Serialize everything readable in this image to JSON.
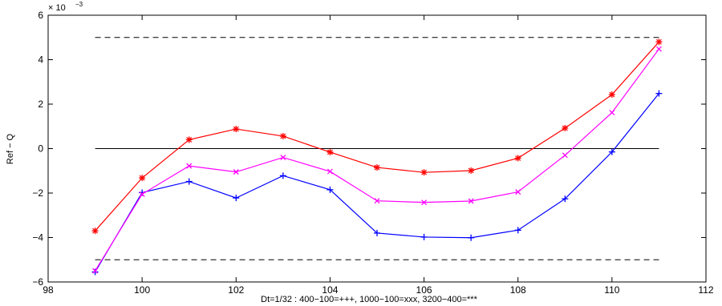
{
  "chart_data": {
    "type": "line",
    "title": "",
    "xlabel": "Dt=1/32 : 400−100=+++, 1000−100=xxx, 3200−400=***",
    "ylabel": "Ref − Q",
    "exponent_label": "× 10",
    "exponent_power": "−3",
    "xlim": [
      98,
      112
    ],
    "ylim": [
      -6,
      6
    ],
    "grid": false,
    "xticks": [
      98,
      100,
      102,
      104,
      106,
      108,
      110,
      112
    ],
    "yticks": [
      -6,
      -4,
      -2,
      0,
      2,
      4,
      6
    ],
    "x": [
      99,
      100,
      101,
      102,
      103,
      104,
      105,
      106,
      107,
      108,
      109,
      110,
      111
    ],
    "series": [
      {
        "marker": "+",
        "color": "#0000ff",
        "values": [
          -5.55,
          -1.98,
          -1.48,
          -2.22,
          -1.22,
          -1.85,
          -3.8,
          -3.98,
          -4.01,
          -3.67,
          -2.26,
          -0.15,
          2.48
        ]
      },
      {
        "marker": "x",
        "color": "#ff00ff",
        "values": [
          -5.5,
          -2.05,
          -0.78,
          -1.05,
          -0.4,
          -1.03,
          -2.35,
          -2.42,
          -2.36,
          -1.95,
          -0.3,
          1.62,
          4.48
        ]
      },
      {
        "marker": "*",
        "color": "#ff0000",
        "values": [
          -3.7,
          -1.32,
          0.4,
          0.88,
          0.56,
          -0.16,
          -0.85,
          -1.07,
          -0.99,
          -0.43,
          0.92,
          2.43,
          4.8
        ]
      }
    ],
    "reference_lines": [
      {
        "y": 5,
        "style": "dashed",
        "color": "#000000"
      },
      {
        "y": 0,
        "style": "solid",
        "color": "#000000",
        "x_range": [
          99,
          111
        ]
      },
      {
        "y": -5,
        "style": "dashed",
        "color": "#000000"
      }
    ]
  }
}
